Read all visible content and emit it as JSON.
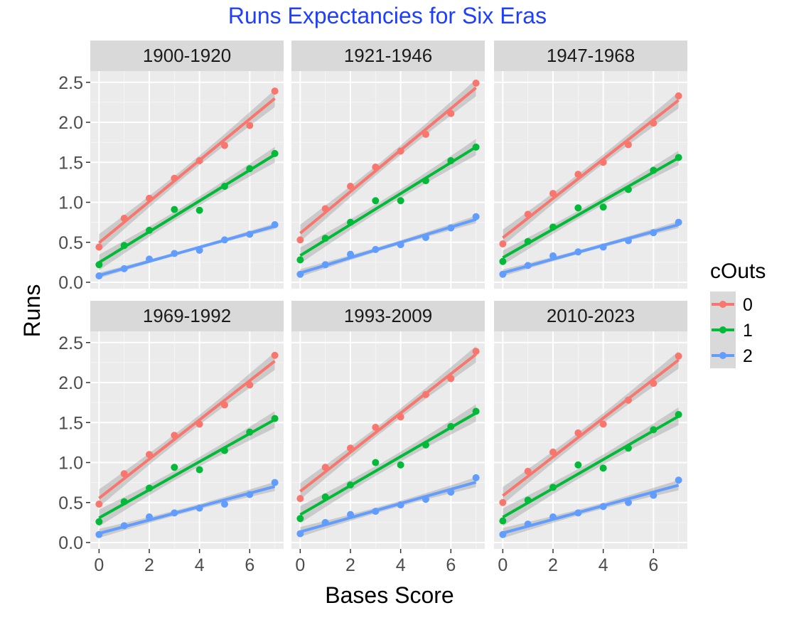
{
  "chart_data": {
    "type": "scatter",
    "title": "Runs Expectancies for Six Eras",
    "xlabel": "Bases Score",
    "ylabel": "Runs",
    "xlim": [
      -0.35,
      7.35
    ],
    "ylim": [
      -0.08,
      2.64
    ],
    "x_ticks": [
      0,
      2,
      4,
      6
    ],
    "y_ticks": [
      0.0,
      0.5,
      1.0,
      1.5,
      2.0,
      2.5
    ],
    "y_tick_labels": [
      "0.0",
      "0.5",
      "1.0",
      "1.5",
      "2.0",
      "2.5"
    ],
    "x_tick_labels": [
      "0",
      "2",
      "4",
      "6"
    ],
    "grid": true,
    "smoothing": "linear fit with confidence band",
    "legend": {
      "title": "cOuts",
      "position": "right",
      "entries": [
        {
          "label": "0",
          "color": "#F8766D"
        },
        {
          "label": "1",
          "color": "#00BA38"
        },
        {
          "label": "2",
          "color": "#619CFF"
        }
      ]
    },
    "x": [
      0,
      1,
      2,
      3,
      4,
      5,
      6,
      7
    ],
    "panels": [
      {
        "label": "1900-1920",
        "series": [
          {
            "name": "0",
            "color": "#F8766D",
            "values": [
              0.44,
              0.8,
              1.05,
              1.3,
              1.52,
              1.71,
              1.96,
              2.39
            ]
          },
          {
            "name": "1",
            "color": "#00BA38",
            "values": [
              0.22,
              0.46,
              0.65,
              0.91,
              0.9,
              1.2,
              1.42,
              1.61
            ]
          },
          {
            "name": "2",
            "color": "#619CFF",
            "values": [
              0.08,
              0.17,
              0.29,
              0.36,
              0.4,
              0.53,
              0.6,
              0.72
            ]
          }
        ]
      },
      {
        "label": "1921-1946",
        "series": [
          {
            "name": "0",
            "color": "#F8766D",
            "values": [
              0.53,
              0.92,
              1.2,
              1.44,
              1.64,
              1.85,
              2.11,
              2.49
            ]
          },
          {
            "name": "1",
            "color": "#00BA38",
            "values": [
              0.28,
              0.55,
              0.75,
              1.02,
              1.02,
              1.27,
              1.52,
              1.69
            ]
          },
          {
            "name": "2",
            "color": "#619CFF",
            "values": [
              0.1,
              0.22,
              0.35,
              0.41,
              0.47,
              0.56,
              0.68,
              0.82
            ]
          }
        ]
      },
      {
        "label": "1947-1968",
        "series": [
          {
            "name": "0",
            "color": "#F8766D",
            "values": [
              0.48,
              0.85,
              1.11,
              1.35,
              1.5,
              1.72,
              1.99,
              2.33
            ]
          },
          {
            "name": "1",
            "color": "#00BA38",
            "values": [
              0.26,
              0.51,
              0.69,
              0.93,
              0.94,
              1.16,
              1.4,
              1.56
            ]
          },
          {
            "name": "2",
            "color": "#619CFF",
            "values": [
              0.1,
              0.21,
              0.33,
              0.38,
              0.44,
              0.52,
              0.62,
              0.75
            ]
          }
        ]
      },
      {
        "label": "1969-1992",
        "series": [
          {
            "name": "0",
            "color": "#F8766D",
            "values": [
              0.48,
              0.86,
              1.1,
              1.34,
              1.48,
              1.72,
              1.97,
              2.34
            ]
          },
          {
            "name": "1",
            "color": "#00BA38",
            "values": [
              0.26,
              0.51,
              0.68,
              0.94,
              0.91,
              1.15,
              1.38,
              1.55
            ]
          },
          {
            "name": "2",
            "color": "#619CFF",
            "values": [
              0.1,
              0.21,
              0.32,
              0.37,
              0.43,
              0.48,
              0.6,
              0.75
            ]
          }
        ]
      },
      {
        "label": "1993-2009",
        "series": [
          {
            "name": "0",
            "color": "#F8766D",
            "values": [
              0.55,
              0.94,
              1.18,
              1.44,
              1.57,
              1.85,
              2.05,
              2.39
            ]
          },
          {
            "name": "1",
            "color": "#00BA38",
            "values": [
              0.3,
              0.57,
              0.72,
              1.0,
              0.97,
              1.22,
              1.45,
              1.64
            ]
          },
          {
            "name": "2",
            "color": "#619CFF",
            "values": [
              0.11,
              0.25,
              0.35,
              0.39,
              0.47,
              0.54,
              0.63,
              0.81
            ]
          }
        ]
      },
      {
        "label": "2010-2023",
        "series": [
          {
            "name": "0",
            "color": "#F8766D",
            "values": [
              0.5,
              0.89,
              1.13,
              1.37,
              1.48,
              1.78,
              1.99,
              2.33
            ]
          },
          {
            "name": "1",
            "color": "#00BA38",
            "values": [
              0.27,
              0.53,
              0.69,
              0.97,
              0.93,
              1.18,
              1.41,
              1.6
            ]
          },
          {
            "name": "2",
            "color": "#619CFF",
            "values": [
              0.1,
              0.23,
              0.32,
              0.37,
              0.45,
              0.5,
              0.59,
              0.78
            ]
          }
        ]
      }
    ]
  }
}
